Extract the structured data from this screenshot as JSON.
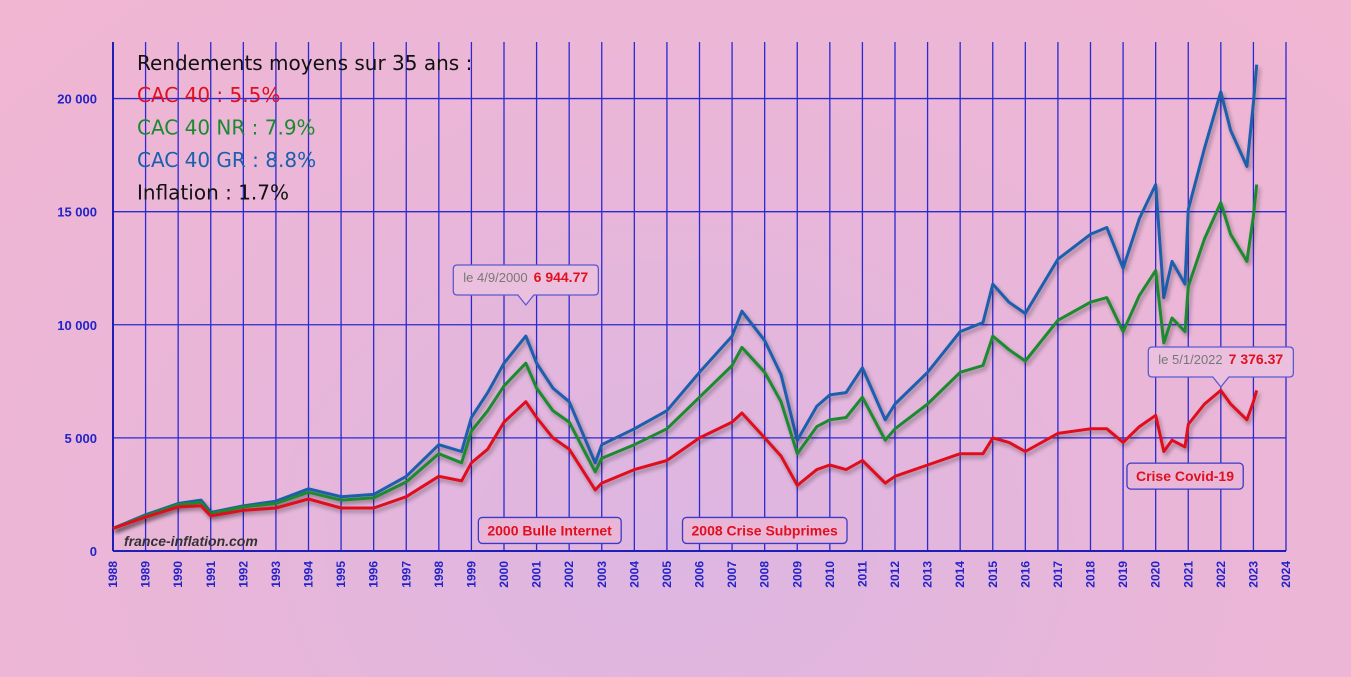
{
  "chart_data": {
    "type": "line",
    "xlim": [
      1988,
      2024
    ],
    "ylim": [
      0,
      22500
    ],
    "grid": true,
    "x_ticks": [
      "1988",
      "1989",
      "1990",
      "1991",
      "1992",
      "1993",
      "1994",
      "1995",
      "1996",
      "1997",
      "1998",
      "1999",
      "2000",
      "2001",
      "2002",
      "2003",
      "2004",
      "2005",
      "2006",
      "2007",
      "2008",
      "2009",
      "2010",
      "2011",
      "2012",
      "2013",
      "2014",
      "2015",
      "2016",
      "2017",
      "2018",
      "2019",
      "2020",
      "2021",
      "2022",
      "2023",
      "2024"
    ],
    "y_ticks": [
      0,
      5000,
      10000,
      15000,
      20000
    ],
    "y_tick_labels": [
      "0",
      "5 000",
      "10 000",
      "15 000",
      "20 000"
    ],
    "info": {
      "title": "Rendements moyens sur 35 ans :",
      "lines": [
        {
          "text": "CAC 40 : 5.5%",
          "color": "#e0101f"
        },
        {
          "text": "CAC 40 NR : 7.9%",
          "color": "#1b8a2e"
        },
        {
          "text": "CAC 40 GR : 8.8%",
          "color": "#1b5fad"
        },
        {
          "text": "Inflation : 1.7%",
          "color": "#111111"
        }
      ]
    },
    "callouts": [
      {
        "date": "le 4/9/2000",
        "value": "6 944.77",
        "x": 2000.67
      },
      {
        "date": "le 5/1/2022",
        "value": "7 376.37",
        "x": 2022.0
      }
    ],
    "annotations": [
      {
        "text": "2000 Bulle Internet",
        "x": 2001.4,
        "y": 600
      },
      {
        "text": "2008 Crise Subprimes",
        "x": 2008.0,
        "y": 600
      },
      {
        "text": "Crise Covid-19",
        "x": 2020.9,
        "y": 3000
      }
    ],
    "watermark": "france-inflation.com",
    "series": [
      {
        "name": "CAC 40 GR",
        "color": "#1b5fad",
        "points": [
          [
            1988,
            1000
          ],
          [
            1989,
            1600
          ],
          [
            1990,
            2100
          ],
          [
            1990.7,
            2250
          ],
          [
            1991,
            1700
          ],
          [
            1992,
            2000
          ],
          [
            1993,
            2200
          ],
          [
            1994,
            2750
          ],
          [
            1995,
            2400
          ],
          [
            1996,
            2500
          ],
          [
            1997,
            3300
          ],
          [
            1998,
            4700
          ],
          [
            1998.7,
            4400
          ],
          [
            1999,
            5900
          ],
          [
            1999.5,
            7000
          ],
          [
            2000,
            8300
          ],
          [
            2000.67,
            9500
          ],
          [
            2001,
            8300
          ],
          [
            2001.5,
            7200
          ],
          [
            2002,
            6600
          ],
          [
            2002.8,
            3900
          ],
          [
            2003,
            4700
          ],
          [
            2004,
            5400
          ],
          [
            2005,
            6200
          ],
          [
            2006,
            7900
          ],
          [
            2007,
            9500
          ],
          [
            2007.3,
            10600
          ],
          [
            2008,
            9300
          ],
          [
            2008.5,
            7800
          ],
          [
            2009,
            4900
          ],
          [
            2009.6,
            6400
          ],
          [
            2010,
            6900
          ],
          [
            2010.5,
            7000
          ],
          [
            2011,
            8100
          ],
          [
            2011.7,
            5800
          ],
          [
            2012,
            6500
          ],
          [
            2013,
            7900
          ],
          [
            2014,
            9700
          ],
          [
            2014.7,
            10100
          ],
          [
            2015,
            11800
          ],
          [
            2015.5,
            11000
          ],
          [
            2016,
            10500
          ],
          [
            2017,
            12900
          ],
          [
            2018,
            14000
          ],
          [
            2018.5,
            14300
          ],
          [
            2019,
            12500
          ],
          [
            2019.5,
            14700
          ],
          [
            2020,
            16200
          ],
          [
            2020.25,
            11200
          ],
          [
            2020.5,
            12800
          ],
          [
            2020.9,
            11800
          ],
          [
            2021,
            15100
          ],
          [
            2021.5,
            17800
          ],
          [
            2022,
            20300
          ],
          [
            2022.3,
            18600
          ],
          [
            2022.8,
            17000
          ],
          [
            2023,
            19800
          ],
          [
            2023.1,
            21500
          ]
        ]
      },
      {
        "name": "CAC 40 NR",
        "color": "#1b8a2e",
        "points": [
          [
            1988,
            1000
          ],
          [
            1989,
            1550
          ],
          [
            1990,
            2050
          ],
          [
            1990.7,
            2150
          ],
          [
            1991,
            1650
          ],
          [
            1992,
            1950
          ],
          [
            1993,
            2100
          ],
          [
            1994,
            2600
          ],
          [
            1995,
            2250
          ],
          [
            1996,
            2350
          ],
          [
            1997,
            3050
          ],
          [
            1998,
            4300
          ],
          [
            1998.7,
            3900
          ],
          [
            1999,
            5300
          ],
          [
            1999.5,
            6200
          ],
          [
            2000,
            7300
          ],
          [
            2000.67,
            8300
          ],
          [
            2001,
            7200
          ],
          [
            2001.5,
            6200
          ],
          [
            2002,
            5700
          ],
          [
            2002.8,
            3500
          ],
          [
            2003,
            4100
          ],
          [
            2004,
            4700
          ],
          [
            2005,
            5400
          ],
          [
            2006,
            6800
          ],
          [
            2007,
            8200
          ],
          [
            2007.3,
            9000
          ],
          [
            2008,
            7900
          ],
          [
            2008.5,
            6600
          ],
          [
            2009,
            4300
          ],
          [
            2009.6,
            5500
          ],
          [
            2010,
            5800
          ],
          [
            2010.5,
            5900
          ],
          [
            2011,
            6800
          ],
          [
            2011.7,
            4900
          ],
          [
            2012,
            5400
          ],
          [
            2013,
            6500
          ],
          [
            2014,
            7900
          ],
          [
            2014.7,
            8200
          ],
          [
            2015,
            9500
          ],
          [
            2015.5,
            8900
          ],
          [
            2016,
            8400
          ],
          [
            2017,
            10200
          ],
          [
            2018,
            11000
          ],
          [
            2018.5,
            11200
          ],
          [
            2019,
            9700
          ],
          [
            2019.5,
            11300
          ],
          [
            2020,
            12400
          ],
          [
            2020.25,
            9200
          ],
          [
            2020.5,
            10300
          ],
          [
            2020.9,
            9700
          ],
          [
            2021,
            11700
          ],
          [
            2021.5,
            13800
          ],
          [
            2022,
            15400
          ],
          [
            2022.3,
            14000
          ],
          [
            2022.8,
            12800
          ],
          [
            2023,
            14800
          ],
          [
            2023.1,
            16200
          ]
        ]
      },
      {
        "name": "CAC 40",
        "color": "#e0101f",
        "points": [
          [
            1988,
            1000
          ],
          [
            1989,
            1500
          ],
          [
            1990,
            1950
          ],
          [
            1990.7,
            2000
          ],
          [
            1991,
            1550
          ],
          [
            1992,
            1800
          ],
          [
            1993,
            1900
          ],
          [
            1994,
            2300
          ],
          [
            1995,
            1900
          ],
          [
            1996,
            1900
          ],
          [
            1997,
            2400
          ],
          [
            1998,
            3300
          ],
          [
            1998.7,
            3100
          ],
          [
            1999,
            3900
          ],
          [
            1999.5,
            4500
          ],
          [
            2000,
            5700
          ],
          [
            2000.67,
            6600
          ],
          [
            2001,
            5900
          ],
          [
            2001.5,
            5000
          ],
          [
            2002,
            4500
          ],
          [
            2002.8,
            2700
          ],
          [
            2003,
            3000
          ],
          [
            2004,
            3600
          ],
          [
            2005,
            4000
          ],
          [
            2006,
            5000
          ],
          [
            2007,
            5700
          ],
          [
            2007.3,
            6100
          ],
          [
            2008,
            5000
          ],
          [
            2008.5,
            4200
          ],
          [
            2009,
            2900
          ],
          [
            2009.6,
            3600
          ],
          [
            2010,
            3800
          ],
          [
            2010.5,
            3600
          ],
          [
            2011,
            4000
          ],
          [
            2011.7,
            3000
          ],
          [
            2012,
            3300
          ],
          [
            2013,
            3800
          ],
          [
            2014,
            4300
          ],
          [
            2014.7,
            4300
          ],
          [
            2015,
            5000
          ],
          [
            2015.5,
            4800
          ],
          [
            2016,
            4400
          ],
          [
            2017,
            5200
          ],
          [
            2018,
            5400
          ],
          [
            2018.5,
            5400
          ],
          [
            2019,
            4800
          ],
          [
            2019.5,
            5500
          ],
          [
            2020,
            6000
          ],
          [
            2020.25,
            4400
          ],
          [
            2020.5,
            4900
          ],
          [
            2020.9,
            4600
          ],
          [
            2021,
            5600
          ],
          [
            2021.5,
            6500
          ],
          [
            2022,
            7100
          ],
          [
            2022.3,
            6500
          ],
          [
            2022.8,
            5800
          ],
          [
            2023,
            6600
          ],
          [
            2023.1,
            7100
          ]
        ]
      }
    ]
  }
}
